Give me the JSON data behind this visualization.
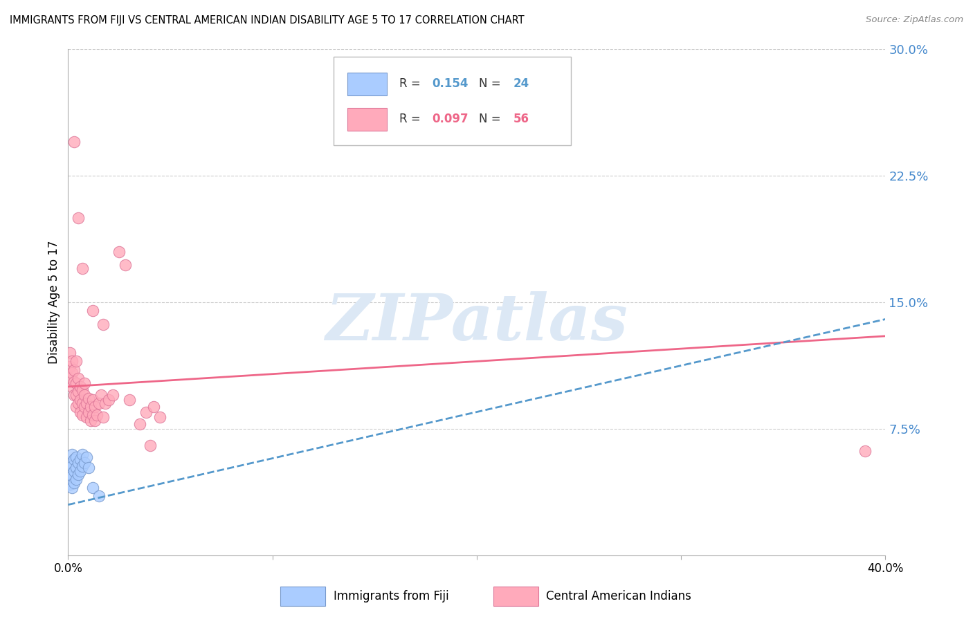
{
  "title": "IMMIGRANTS FROM FIJI VS CENTRAL AMERICAN INDIAN DISABILITY AGE 5 TO 17 CORRELATION CHART",
  "source": "Source: ZipAtlas.com",
  "ylabel": "Disability Age 5 to 17",
  "xlim": [
    0.0,
    0.4
  ],
  "ylim": [
    0.0,
    0.3
  ],
  "ytick_right": [
    0.075,
    0.15,
    0.225,
    0.3
  ],
  "ytick_right_labels": [
    "7.5%",
    "15.0%",
    "22.5%",
    "30.0%"
  ],
  "grid_color": "#cccccc",
  "background_color": "#ffffff",
  "fiji_color": "#aaccff",
  "fiji_edge_color": "#7799cc",
  "central_color": "#ffaabb",
  "central_edge_color": "#dd7799",
  "trendline_fiji_color": "#5599cc",
  "trendline_central_color": "#ee6688",
  "right_axis_color": "#4488cc",
  "watermark": "ZIPatlas",
  "watermark_color": "#dce8f5",
  "fiji_R": 0.154,
  "fiji_N": 24,
  "central_R": 0.097,
  "central_N": 56,
  "fiji_scatter_x": [
    0.001,
    0.001,
    0.001,
    0.002,
    0.002,
    0.002,
    0.002,
    0.003,
    0.003,
    0.003,
    0.004,
    0.004,
    0.004,
    0.005,
    0.005,
    0.006,
    0.006,
    0.007,
    0.007,
    0.008,
    0.009,
    0.01,
    0.012,
    0.015
  ],
  "fiji_scatter_y": [
    0.042,
    0.048,
    0.055,
    0.04,
    0.047,
    0.053,
    0.06,
    0.043,
    0.05,
    0.057,
    0.045,
    0.052,
    0.058,
    0.048,
    0.055,
    0.05,
    0.057,
    0.053,
    0.06,
    0.055,
    0.058,
    0.052,
    0.04,
    0.035
  ],
  "central_scatter_x": [
    0.001,
    0.001,
    0.001,
    0.002,
    0.002,
    0.002,
    0.003,
    0.003,
    0.003,
    0.004,
    0.004,
    0.004,
    0.004,
    0.005,
    0.005,
    0.005,
    0.006,
    0.006,
    0.006,
    0.007,
    0.007,
    0.007,
    0.008,
    0.008,
    0.008,
    0.009,
    0.009,
    0.01,
    0.01,
    0.011,
    0.011,
    0.012,
    0.012,
    0.013,
    0.013,
    0.014,
    0.015,
    0.016,
    0.017,
    0.018,
    0.02,
    0.022,
    0.025,
    0.028,
    0.03,
    0.035,
    0.038,
    0.04,
    0.042,
    0.045,
    0.003,
    0.005,
    0.007,
    0.012,
    0.017,
    0.39
  ],
  "central_scatter_y": [
    0.105,
    0.112,
    0.12,
    0.1,
    0.108,
    0.115,
    0.095,
    0.103,
    0.11,
    0.088,
    0.095,
    0.102,
    0.115,
    0.09,
    0.097,
    0.105,
    0.085,
    0.092,
    0.1,
    0.083,
    0.09,
    0.098,
    0.088,
    0.095,
    0.102,
    0.082,
    0.09,
    0.085,
    0.093,
    0.08,
    0.088,
    0.083,
    0.092,
    0.08,
    0.088,
    0.083,
    0.09,
    0.095,
    0.082,
    0.09,
    0.092,
    0.095,
    0.18,
    0.172,
    0.092,
    0.078,
    0.085,
    0.065,
    0.088,
    0.082,
    0.245,
    0.2,
    0.17,
    0.145,
    0.137,
    0.062
  ],
  "central_trendline_x0": 0.0,
  "central_trendline_y0": 0.1,
  "central_trendline_x1": 0.4,
  "central_trendline_y1": 0.13,
  "fiji_trendline_x0": 0.0,
  "fiji_trendline_y0": 0.03,
  "fiji_trendline_x1": 0.4,
  "fiji_trendline_y1": 0.14
}
